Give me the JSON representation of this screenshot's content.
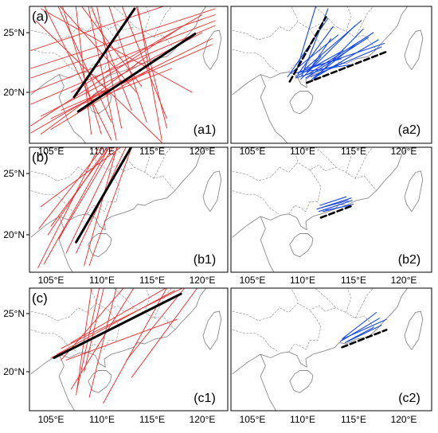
{
  "axes": {
    "lat_labels": [
      "25°N",
      "20°N"
    ],
    "lon_labels": [
      "105°E",
      "110°E",
      "115°E",
      "120°E"
    ]
  },
  "colors": {
    "red_tracks": "#ee2a2a",
    "blue_tracks": "#1546ea",
    "mean_line": "#000000",
    "coast": "#8a8a8a"
  },
  "rows": [
    {
      "row_label": "(a)",
      "left": {
        "label": "(a1)",
        "red_lines": [
          [
            [
              103,
              29.5
            ],
            [
              111,
              16
            ]
          ],
          [
            [
              103.5,
              26
            ],
            [
              116,
              15.8
            ]
          ],
          [
            [
              104,
              27
            ],
            [
              119,
              20
            ]
          ],
          [
            [
              104,
              29
            ],
            [
              113.5,
              20
            ]
          ],
          [
            [
              105,
              28.5
            ],
            [
              111,
              17.5
            ]
          ],
          [
            [
              105.5,
              29
            ],
            [
              110,
              16.5
            ]
          ],
          [
            [
              106,
              29.5
            ],
            [
              114,
              20.5
            ]
          ],
          [
            [
              107,
              30.5
            ],
            [
              109,
              16.5
            ]
          ],
          [
            [
              107.5,
              30.5
            ],
            [
              113,
              18.5
            ]
          ],
          [
            [
              108,
              30
            ],
            [
              111.5,
              16
            ]
          ],
          [
            [
              109,
              29.5
            ],
            [
              112,
              17
            ]
          ],
          [
            [
              109.5,
              30.5
            ],
            [
              114.5,
              17.5
            ]
          ],
          [
            [
              110.5,
              30.5
            ],
            [
              116.5,
              17.8
            ]
          ],
          [
            [
              112.5,
              30.5
            ],
            [
              116.5,
              17
            ]
          ],
          [
            [
              113,
              30
            ],
            [
              116,
              16
            ]
          ],
          [
            [
              103,
              22
            ],
            [
              121.3,
              27
            ]
          ],
          [
            [
              103,
              21.2
            ],
            [
              121.3,
              26.5
            ]
          ],
          [
            [
              103,
              20
            ],
            [
              121.3,
              26
            ]
          ],
          [
            [
              103,
              19
            ],
            [
              121.3,
              25.6
            ]
          ],
          [
            [
              104,
              18
            ],
            [
              120,
              25
            ]
          ],
          [
            [
              105,
              17.8
            ],
            [
              121,
              24.5
            ]
          ],
          [
            [
              103,
              17.2
            ],
            [
              118,
              25.5
            ]
          ],
          [
            [
              106,
              18.5
            ],
            [
              121,
              24
            ]
          ],
          [
            [
              107,
              20
            ],
            [
              120,
              26.5
            ]
          ],
          [
            [
              103,
              23.5
            ],
            [
              119,
              28
            ]
          ],
          [
            [
              105,
              16.9
            ],
            [
              115,
              22
            ]
          ],
          [
            [
              103,
              16.6
            ],
            [
              112,
              21
            ]
          ],
          [
            [
              104,
              16.5
            ],
            [
              114.5,
              23
            ]
          ],
          [
            [
              108,
              19
            ],
            [
              117,
              22
            ]
          ]
        ],
        "black_lines": [
          [
            [
              107.3,
              19.6
            ],
            [
              113.3,
              27
            ]
          ],
          [
            [
              107.7,
              18.4
            ],
            [
              119.3,
              24.9
            ]
          ]
        ]
      },
      "right": {
        "label": "(a2)",
        "blue_lines": [
          [
            [
              108.5,
              21.3
            ],
            [
              112.5,
              26.2
            ]
          ],
          [
            [
              108.8,
              21.6
            ],
            [
              113.5,
              24.8
            ]
          ],
          [
            [
              109.3,
              21.3
            ],
            [
              114,
              23.5
            ]
          ],
          [
            [
              109.5,
              21.5
            ],
            [
              113,
              25.5
            ]
          ],
          [
            [
              109.8,
              21.1
            ],
            [
              115.2,
              25.6
            ]
          ],
          [
            [
              110,
              21.8
            ],
            [
              115.8,
              26
            ]
          ],
          [
            [
              110.3,
              21.2
            ],
            [
              116.5,
              24.6
            ]
          ],
          [
            [
              110.5,
              21.5
            ],
            [
              117,
              25
            ]
          ],
          [
            [
              110.8,
              21.3
            ],
            [
              117.8,
              23.8
            ]
          ],
          [
            [
              111,
              21
            ],
            [
              116,
              25.3
            ]
          ],
          [
            [
              110.2,
              22
            ],
            [
              113.8,
              22.8
            ]
          ],
          [
            [
              109.1,
              21.6
            ],
            [
              114.7,
              22.3
            ]
          ],
          [
            [
              109.6,
              21.7
            ],
            [
              118.1,
              24.1
            ]
          ],
          [
            [
              110.6,
              21.8
            ],
            [
              112.8,
              24.5
            ]
          ],
          [
            [
              111.1,
              21.2
            ],
            [
              117.5,
              24.4
            ]
          ],
          [
            [
              109.4,
              21.9
            ],
            [
              111.5,
              27.8
            ]
          ],
          [
            [
              109.9,
              21.4
            ],
            [
              112.5,
              27
            ]
          ],
          [
            [
              110.4,
              21.6
            ],
            [
              111.8,
              23
            ]
          ],
          [
            [
              110.9,
              21.1
            ],
            [
              115.5,
              24.2
            ]
          ],
          [
            [
              109.3,
              21.2
            ],
            [
              113.9,
              22.4
            ]
          ]
        ],
        "black_lines": [
          [
            [
              108.7,
              20.9
            ],
            [
              112.3,
              26.3
            ]
          ],
          [
            [
              110.4,
              20.8
            ],
            [
              118.3,
              23.4
            ]
          ]
        ]
      }
    },
    {
      "row_label": "(b)",
      "left": {
        "label": "(b1)",
        "red_lines": [
          [
            [
              103.7,
              17.3
            ],
            [
              111.5,
              30
            ]
          ],
          [
            [
              103.8,
              20.5
            ],
            [
              111.3,
              28.3
            ]
          ],
          [
            [
              104.7,
              20
            ],
            [
              111.7,
              28.5
            ]
          ],
          [
            [
              105,
              20.7
            ],
            [
              112.3,
              28.8
            ]
          ],
          [
            [
              105.8,
              19.7
            ],
            [
              112.1,
              28.5
            ]
          ],
          [
            [
              106.5,
              18.5
            ],
            [
              113.3,
              30
            ]
          ],
          [
            [
              107.5,
              18.5
            ],
            [
              113.5,
              29
            ]
          ],
          [
            [
              108.3,
              17.5
            ],
            [
              112,
              28.5
            ]
          ],
          [
            [
              108.8,
              17.5
            ],
            [
              113.3,
              27.8
            ]
          ],
          [
            [
              104,
              22.3
            ],
            [
              112.5,
              27.5
            ]
          ],
          [
            [
              104.3,
              17.6
            ],
            [
              111.5,
              28.2
            ]
          ]
        ],
        "black_lines": [
          [
            [
              107.5,
              19.4
            ],
            [
              113,
              27.2
            ]
          ]
        ]
      },
      "right": {
        "label": "(b2)",
        "blue_lines": [
          [
            [
              111.4,
              22.1
            ],
            [
              114.8,
              23
            ]
          ],
          [
            [
              111.6,
              21.9
            ],
            [
              114.9,
              22.8
            ]
          ],
          [
            [
              111.8,
              22.2
            ],
            [
              114.5,
              22.8
            ]
          ],
          [
            [
              112,
              21.9
            ],
            [
              115,
              22.5
            ]
          ],
          [
            [
              112.3,
              22
            ],
            [
              114.7,
              22.4
            ]
          ],
          [
            [
              111.7,
              22.4
            ],
            [
              114.3,
              23.1
            ]
          ]
        ],
        "black_lines": [
          [
            [
              111.8,
              21.4
            ],
            [
              115,
              22.4
            ]
          ]
        ]
      }
    },
    {
      "row_label": "(c)",
      "left": {
        "label": "(c1)",
        "red_lines": [
          [
            [
              106,
              21
            ],
            [
              115,
              30
            ]
          ],
          [
            [
              107.5,
              18
            ],
            [
              109.5,
              30
            ]
          ],
          [
            [
              107.6,
              18.5
            ],
            [
              110.5,
              30
            ]
          ],
          [
            [
              108.3,
              20
            ],
            [
              111,
              30
            ]
          ],
          [
            [
              108.8,
              17.8
            ],
            [
              112,
              29
            ]
          ],
          [
            [
              110.2,
              17.3
            ],
            [
              117,
              28
            ]
          ],
          [
            [
              112.5,
              21
            ],
            [
              119,
              28
            ]
          ],
          [
            [
              113,
              19.5
            ],
            [
              120.2,
              28
            ]
          ],
          [
            [
              107,
              18.5
            ],
            [
              114.5,
              29
            ]
          ],
          [
            [
              105.6,
              21.5
            ],
            [
              117.3,
              27
            ]
          ],
          [
            [
              106,
              22
            ],
            [
              118.3,
              27.3
            ]
          ],
          [
            [
              107,
              22.5
            ],
            [
              117,
              27.5
            ]
          ],
          [
            [
              106.5,
              21
            ],
            [
              117.5,
              24.5
            ]
          ],
          [
            [
              105,
              21.2
            ],
            [
              116,
              25.8
            ]
          ]
        ],
        "black_lines": [
          [
            [
              105.3,
              21.2
            ],
            [
              117.9,
              26.7
            ]
          ]
        ]
      },
      "right": {
        "label": "(c2)",
        "blue_lines": [
          [
            [
              113.7,
              22.6
            ],
            [
              117.6,
              24.6
            ]
          ],
          [
            [
              113.9,
              22.8
            ],
            [
              118.3,
              24.5
            ]
          ],
          [
            [
              114.2,
              22.5
            ],
            [
              117.8,
              24
            ]
          ],
          [
            [
              114.4,
              22.6
            ],
            [
              117,
              23.8
            ]
          ],
          [
            [
              114,
              22.9
            ],
            [
              117.3,
              25.1
            ]
          ]
        ],
        "black_lines": [
          [
            [
              113.9,
              22.1
            ],
            [
              118.3,
              23.6
            ]
          ]
        ]
      }
    }
  ]
}
